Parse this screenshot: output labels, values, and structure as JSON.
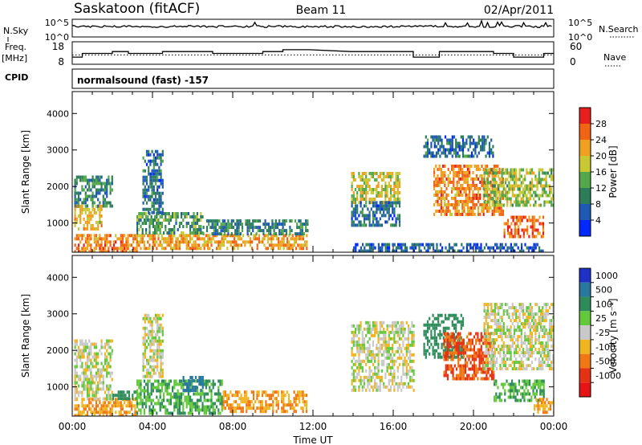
{
  "header": {
    "station": "Saskatoon (fitACF)",
    "beam": "Beam 11",
    "date": "02/Apr/2011"
  },
  "summary_panels": {
    "nsky_label": "N.Sky",
    "nsky_ticks": [
      "10^5",
      "10^0"
    ],
    "nsearch_label": "N.Search",
    "nsearch_ticks": [
      "10^5",
      "10^0"
    ],
    "freq_label_line1": "Freq.",
    "freq_label_line2": "[MHz]",
    "freq_ticks": [
      "18",
      "8"
    ],
    "nave_label": "Nave",
    "nave_ticks": [
      "60",
      "0"
    ],
    "cpid_label": "CPID",
    "cpid_text": "normalsound (fast) -157"
  },
  "axes": {
    "ylabel": "Slant Range [km]",
    "yticks": [
      "1000",
      "2000",
      "3000",
      "4000"
    ],
    "xlabel": "Time UT",
    "xticks": [
      "00:00",
      "04:00",
      "08:00",
      "12:00",
      "16:00",
      "20:00",
      "00:00"
    ]
  },
  "power_scale": {
    "label": "Power [dB]",
    "ticks": [
      "4",
      "8",
      "12",
      "16",
      "20",
      "24",
      "28"
    ],
    "colors": [
      "#0028ff",
      "#1e5ab4",
      "#2d7d5a",
      "#52a84a",
      "#c8c832",
      "#f0a01e",
      "#f06414",
      "#e61e1e"
    ]
  },
  "velocity_scale": {
    "label": "Velocity [m s⁻¹]",
    "ticks": [
      "1000",
      "500",
      "100",
      "25",
      "-25",
      "-100",
      "-500",
      "-1000"
    ],
    "colors": [
      "#1e32c8",
      "#2878a0",
      "#2d8c5a",
      "#64c83c",
      "#c8c8c8",
      "#f0b41e",
      "#f07814",
      "#e63214",
      "#e61414"
    ]
  },
  "chart_data": {
    "type": "heatmap",
    "title": "Saskatoon (fitACF)",
    "xlabel": "Time UT",
    "ylabel": "Slant Range [km]",
    "xlim": [
      "00:00",
      "24:00"
    ],
    "ylim": [
      200,
      4600
    ],
    "panels": [
      {
        "name": "Power",
        "label": "Power [dB]",
        "regions": [
          {
            "t0": 0.1,
            "t1": 3.2,
            "r0": 250,
            "r1": 700,
            "value": 24
          },
          {
            "t0": 0.1,
            "t1": 1.5,
            "r0": 800,
            "r1": 1500,
            "value": 20
          },
          {
            "t0": 0.1,
            "t1": 2.0,
            "r0": 1500,
            "r1": 2300,
            "value": 10
          },
          {
            "t0": 3.2,
            "t1": 11.7,
            "r0": 300,
            "r1": 700,
            "value": 22
          },
          {
            "t0": 3.2,
            "t1": 6.5,
            "r0": 700,
            "r1": 1300,
            "value": 12
          },
          {
            "t0": 3.5,
            "t1": 4.5,
            "r0": 1300,
            "r1": 3000,
            "value": 8
          },
          {
            "t0": 6.5,
            "t1": 11.7,
            "r0": 700,
            "r1": 1100,
            "value": 10
          },
          {
            "t0": 13.9,
            "t1": 16.3,
            "r0": 1600,
            "r1": 2400,
            "value": 18
          },
          {
            "t0": 13.9,
            "t1": 16.3,
            "r0": 900,
            "r1": 1600,
            "value": 8
          },
          {
            "t0": 18.0,
            "t1": 21.5,
            "r0": 1200,
            "r1": 2600,
            "value": 24
          },
          {
            "t0": 20.5,
            "t1": 24.0,
            "r0": 1500,
            "r1": 2500,
            "value": 16
          },
          {
            "t0": 21.5,
            "t1": 23.5,
            "r0": 600,
            "r1": 1200,
            "value": 26
          },
          {
            "t0": 17.5,
            "t1": 21.0,
            "r0": 2800,
            "r1": 3400,
            "value": 8
          },
          {
            "t0": 14.0,
            "t1": 23.5,
            "r0": 200,
            "r1": 450,
            "value": 6
          }
        ]
      },
      {
        "name": "Velocity",
        "label": "Velocity [m s⁻¹]",
        "regions": [
          {
            "t0": 0.1,
            "t1": 3.2,
            "r0": 250,
            "r1": 700,
            "value": -100
          },
          {
            "t0": 0.1,
            "t1": 2.0,
            "r0": 700,
            "r1": 2300,
            "value": 0
          },
          {
            "t0": 2.0,
            "t1": 3.2,
            "r0": 700,
            "r1": 900,
            "value": 300
          },
          {
            "t0": 3.2,
            "t1": 7.5,
            "r0": 300,
            "r1": 1200,
            "value": 100
          },
          {
            "t0": 5.5,
            "t1": 6.5,
            "r0": 900,
            "r1": 1300,
            "value": 800
          },
          {
            "t0": 7.5,
            "t1": 11.7,
            "r0": 300,
            "r1": 900,
            "value": -100
          },
          {
            "t0": 3.5,
            "t1": 4.5,
            "r0": 1300,
            "r1": 3000,
            "value": 0
          },
          {
            "t0": 13.9,
            "t1": 17.0,
            "r0": 900,
            "r1": 2800,
            "value": 0
          },
          {
            "t0": 17.5,
            "t1": 19.5,
            "r0": 1800,
            "r1": 3000,
            "value": 300
          },
          {
            "t0": 18.5,
            "t1": 21.0,
            "r0": 1200,
            "r1": 2500,
            "value": -500
          },
          {
            "t0": 20.5,
            "t1": 24.0,
            "r0": 1500,
            "r1": 3300,
            "value": 0
          },
          {
            "t0": 21.0,
            "t1": 23.5,
            "r0": 600,
            "r1": 1200,
            "value": 100
          },
          {
            "t0": 23.0,
            "t1": 24.0,
            "r0": 300,
            "r1": 700,
            "value": -100
          }
        ]
      }
    ],
    "summary": {
      "nsky_range": [
        1,
        100000
      ],
      "freq_mhz": [
        {
          "t0": 0.0,
          "t1": 0.5,
          "value": 11
        },
        {
          "t0": 0.5,
          "t1": 2.0,
          "value": 13
        },
        {
          "t0": 2.0,
          "t1": 2.8,
          "value": 14
        },
        {
          "t0": 2.8,
          "t1": 4.5,
          "value": 13
        },
        {
          "t0": 4.5,
          "t1": 7.0,
          "value": 14
        },
        {
          "t0": 7.0,
          "t1": 9.5,
          "value": 13
        },
        {
          "t0": 9.5,
          "t1": 10.5,
          "value": 14
        },
        {
          "t0": 10.5,
          "t1": 11.8,
          "value": 15
        },
        {
          "t0": 13.9,
          "t1": 17.0,
          "value": 14
        },
        {
          "t0": 17.0,
          "t1": 18.3,
          "value": 11
        },
        {
          "t0": 18.3,
          "t1": 21.0,
          "value": 14
        },
        {
          "t0": 21.0,
          "t1": 22.0,
          "value": 13
        },
        {
          "t0": 22.0,
          "t1": 23.5,
          "value": 11
        },
        {
          "t0": 23.5,
          "t1": 24.0,
          "value": 13
        }
      ],
      "nave_reference": 25
    }
  }
}
